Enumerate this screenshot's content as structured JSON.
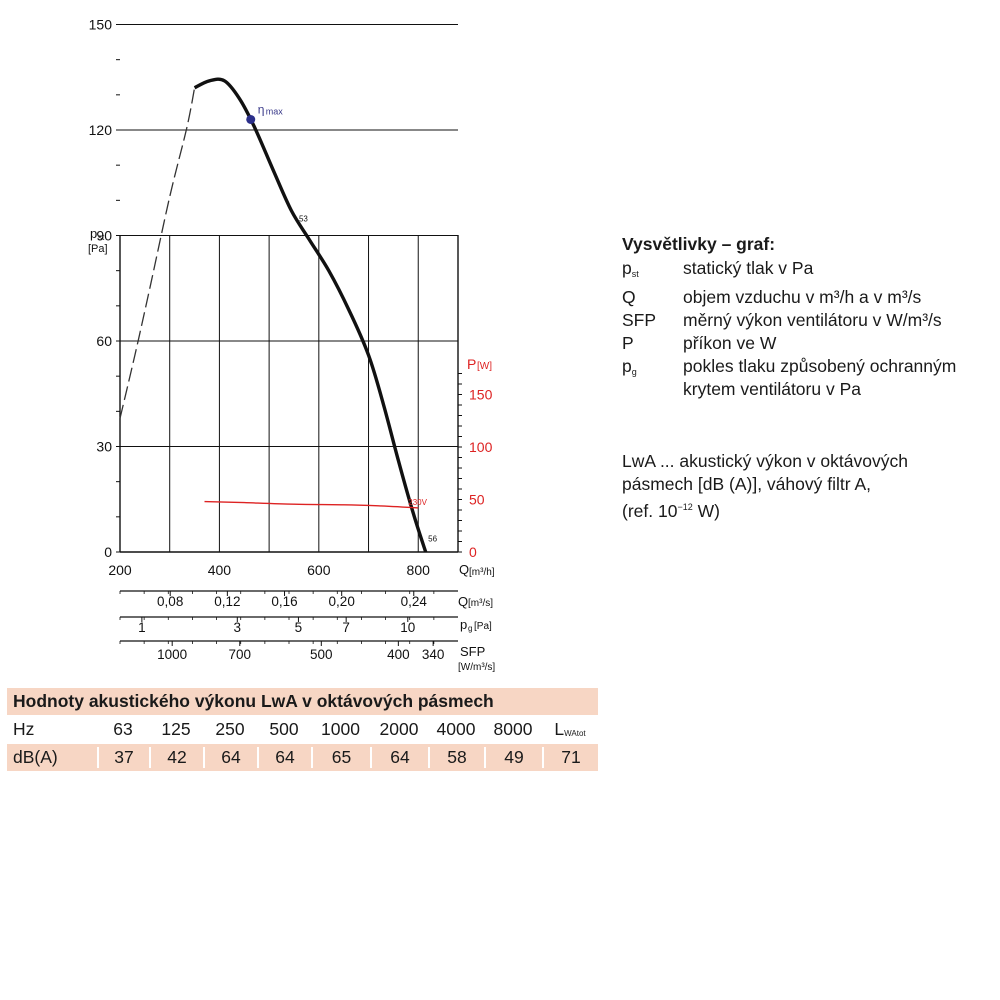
{
  "chart_data": {
    "type": "line",
    "y_label": "p",
    "y_label_sub": "st",
    "y_unit": "[Pa]",
    "y_ticks": [
      "0",
      "30",
      "60",
      "90",
      "120",
      "150"
    ],
    "ylim": [
      0,
      150
    ],
    "y2_label": "P",
    "y2_unit": "[W]",
    "y2_ticks": [
      "0",
      "50",
      "100",
      "150"
    ],
    "y2lim": [
      0,
      150
    ],
    "x_label": "Q",
    "x_unit": "[m³/h]",
    "x_ticks": [
      "200",
      "400",
      "600",
      "800"
    ],
    "xlim": [
      200,
      880
    ],
    "grid": true,
    "series": [
      {
        "role": "pressure_dashed",
        "color": "#333333",
        "points": [
          [
            200,
            38
          ],
          [
            230,
            56
          ],
          [
            260,
            75
          ],
          [
            300,
            101
          ],
          [
            335,
            121
          ],
          [
            350,
            132
          ]
        ]
      },
      {
        "role": "pressure",
        "color": "#111111",
        "points": [
          [
            350,
            132
          ],
          [
            380,
            134
          ],
          [
            410,
            134
          ],
          [
            440,
            129
          ],
          [
            470,
            121
          ],
          [
            510,
            108
          ],
          [
            545,
            97
          ],
          [
            580,
            89
          ],
          [
            620,
            80
          ],
          [
            660,
            69
          ],
          [
            700,
            56
          ],
          [
            730,
            42
          ],
          [
            760,
            26
          ],
          [
            790,
            11
          ],
          [
            815,
            0
          ]
        ],
        "labels": [
          {
            "at": [
              560,
              94
            ],
            "text": "53"
          },
          {
            "at": [
              820,
              3
            ],
            "text": "56"
          }
        ]
      },
      {
        "name": "230V",
        "role": "power",
        "axis": "y2",
        "color": "#dd2222",
        "points": [
          [
            370,
            48
          ],
          [
            450,
            47
          ],
          [
            550,
            45.5
          ],
          [
            650,
            45
          ],
          [
            720,
            44
          ],
          [
            800,
            42
          ]
        ],
        "label_at": [
          780,
          45
        ]
      }
    ],
    "annotations": [
      {
        "text": "η",
        "sub": "max",
        "point": [
          463,
          123
        ],
        "color": "#3a3a8a"
      }
    ],
    "secondary_axes": [
      {
        "label": "Q",
        "unit": "[m³/s]",
        "ticks": [
          "0,08",
          "0,12",
          "0,16",
          "0,20",
          "0,24"
        ],
        "tick_x": [
          301,
          416,
          531,
          646,
          791
        ]
      },
      {
        "label": "p",
        "label_sub": "g",
        "unit": "[Pa]",
        "ticks": [
          "1",
          "3",
          "5",
          "7",
          "10"
        ],
        "tick_x": [
          244,
          436,
          559,
          655,
          779
        ]
      },
      {
        "label": "SFP",
        "unit": "[W/m³/s]",
        "ticks": [
          "1000",
          "700",
          "500",
          "400",
          "340"
        ],
        "tick_x": [
          305,
          441,
          605,
          760,
          830
        ]
      }
    ]
  },
  "legend": {
    "title": "Vysvětlivky – graf:",
    "items": [
      {
        "sym": "p",
        "sym_sub": "st",
        "desc": "statický tlak v Pa"
      },
      {
        "sym": "Q",
        "sym_sub": "",
        "desc": "objem vzduchu v m³/h a v m³/s"
      },
      {
        "sym": "SFP",
        "sym_sub": "",
        "desc": "měrný výkon ventilátoru v W/m³/s"
      },
      {
        "sym": "P",
        "sym_sub": "",
        "desc": "příkon ve W"
      },
      {
        "sym": "p",
        "sym_sub": "g",
        "desc": "pokles tlaku způsobený ochranným krytem ventilátoru v Pa"
      }
    ]
  },
  "note": {
    "line1": "LwA ... akustický výkon v oktávových",
    "line2": "pásmech [dB (A)],  váhový filtr A,",
    "line3_pre": "(ref. 10",
    "line3_sup": "−12",
    "line3_post": " W)"
  },
  "acoustic": {
    "title": "Hodnoty akustického výkonu LwA v oktávových pásmech",
    "row1_label": "Hz",
    "row2_label": "dB(A)",
    "bands": [
      "63",
      "125",
      "250",
      "500",
      "1000",
      "2000",
      "4000",
      "8000"
    ],
    "values": [
      "37",
      "42",
      "64",
      "64",
      "65",
      "64",
      "58",
      "49"
    ],
    "total_label": "L",
    "total_label_sub": "WAtot",
    "total_value": "71"
  }
}
